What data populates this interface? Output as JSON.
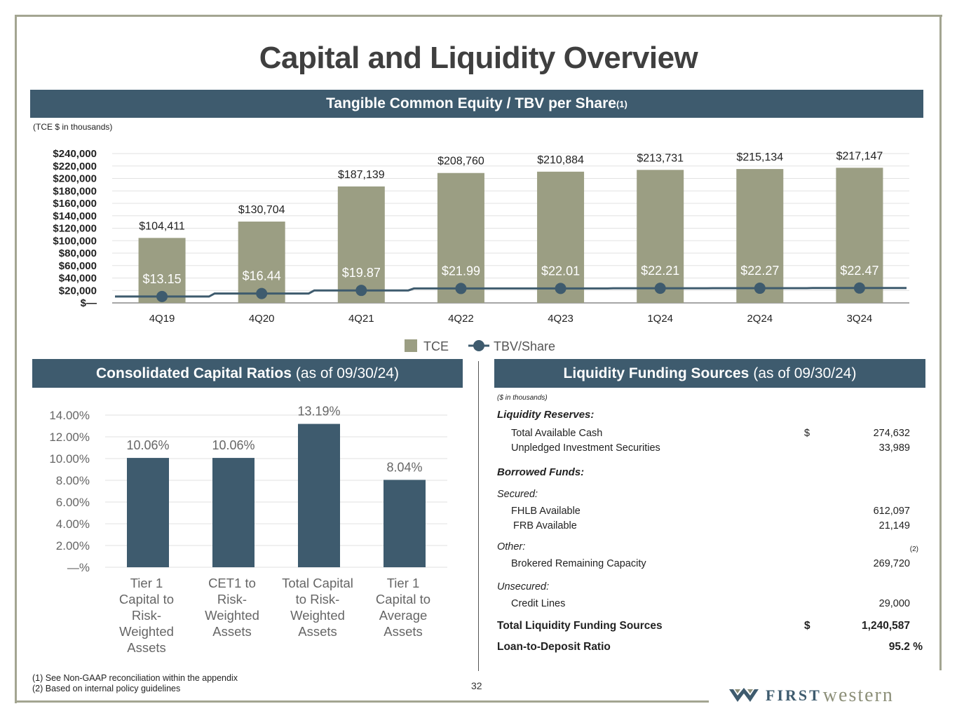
{
  "title": "Capital and Liquidity Overview",
  "tce_section": {
    "banner": "Tangible Common Equity / TBV per Share",
    "banner_sup": "(1)",
    "unit_note": "(TCE $ in thousands)"
  },
  "ratios_section": {
    "banner": "Consolidated Capital Ratios",
    "banner_sub": "(as of 09/30/24)"
  },
  "liquidity_section": {
    "banner": "Liquidity Funding Sources",
    "banner_sub": "(as of 09/30/24)",
    "unit_note": "($ in thousands)",
    "reserves_heading": "Liquidity Reserves:",
    "total_cash_label": "Total Available Cash",
    "total_cash_currency": "$",
    "total_cash_value": "274,632",
    "unpledged_label": "Unpledged Investment Securities",
    "unpledged_value": "33,989",
    "borrowed_heading": "Borrowed Funds:",
    "secured_label": "Secured:",
    "fhlb_label": "FHLB Available",
    "fhlb_value": "612,097",
    "frb_label": "FRB Available",
    "frb_value": "21,149",
    "other_label": "Other:",
    "other_ref": "(2)",
    "brokered_label": "Brokered Remaining Capacity",
    "brokered_value": "269,720",
    "unsecured_label": "Unsecured:",
    "credit_label": "Credit Lines",
    "credit_value": "29,000",
    "total_label": "Total Liquidity Funding Sources",
    "total_currency": "$",
    "total_value": "1,240,587",
    "ltd_label": "Loan-to-Deposit Ratio",
    "ltd_value": "95.2 %"
  },
  "footnotes": {
    "note1": "(1) See Non-GAAP reconciliation within the appendix",
    "note2": "(2) Based on internal policy guidelines"
  },
  "page_number": "32",
  "logo": {
    "first": "FIRST",
    "western": "western"
  },
  "colors": {
    "banner": "#3e5b6e",
    "tce_bar": "#9b9e83",
    "tbv_line": "#3e5b6e",
    "ratio_bar": "#3e5b6e"
  },
  "chart_data": [
    {
      "type": "bar",
      "categories": [
        "4Q19",
        "4Q20",
        "4Q21",
        "4Q22",
        "4Q23",
        "1Q24",
        "2Q24",
        "3Q24"
      ],
      "series": [
        {
          "name": "TCE",
          "type": "bar",
          "values": [
            104411,
            130704,
            187139,
            208760,
            210884,
            213731,
            215134,
            217147
          ],
          "labels": [
            "$104,411",
            "$130,704",
            "$187,139",
            "$208,760",
            "$210,884",
            "$213,731",
            "$215,134",
            "$217,147"
          ]
        },
        {
          "name": "TBV/Share",
          "type": "line",
          "values": [
            13.15,
            16.44,
            19.87,
            21.99,
            22.01,
            22.21,
            22.27,
            22.47
          ],
          "labels": [
            "$13.15",
            "$16.44",
            "$19.87",
            "$21.99",
            "$22.01",
            "$22.21",
            "$22.27",
            "$22.47"
          ]
        }
      ],
      "ylim": [
        0,
        240000
      ],
      "yticks": [
        "$240,000",
        "$220,000",
        "$200,000",
        "$180,000",
        "$160,000",
        "$140,000",
        "$120,000",
        "$100,000",
        "$80,000",
        "$60,000",
        "$40,000",
        "$20,000",
        "$—"
      ],
      "legend": [
        "TCE",
        "TBV/Share"
      ],
      "legend_position": "bottom",
      "grid": true
    },
    {
      "type": "bar",
      "categories": [
        "Tier 1 Capital to Risk-Weighted Assets",
        "CET1 to Risk-Weighted Assets",
        "Total Capital to Risk-Weighted Assets",
        "Tier 1 Capital to Average Assets"
      ],
      "category_lines": [
        [
          "Tier 1",
          "Capital to",
          "Risk-",
          "Weighted",
          "Assets"
        ],
        [
          "CET1 to",
          "Risk-",
          "Weighted",
          "Assets"
        ],
        [
          "Total Capital",
          "to Risk-",
          "Weighted",
          "Assets"
        ],
        [
          "Tier 1",
          "Capital to",
          "Average",
          "Assets"
        ]
      ],
      "values": [
        10.06,
        10.06,
        13.19,
        8.04
      ],
      "labels": [
        "10.06%",
        "10.06%",
        "13.19%",
        "8.04%"
      ],
      "ylim": [
        0,
        14
      ],
      "yticks": [
        "14.00%",
        "12.00%",
        "10.00%",
        "8.00%",
        "6.00%",
        "4.00%",
        "2.00%",
        "—%"
      ],
      "grid": true
    }
  ]
}
